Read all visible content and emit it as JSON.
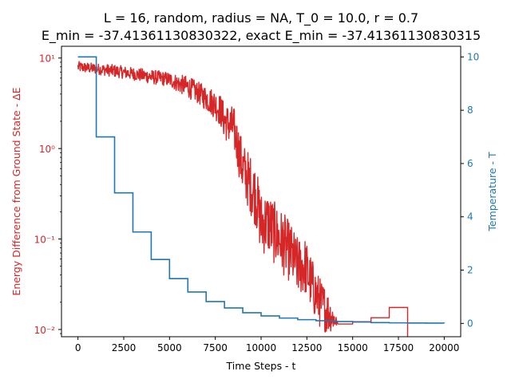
{
  "chart_data": {
    "type": "line",
    "title_line1": "L = 16, random, radius = NA, T_0 = 10.0, r = 0.7",
    "title_line2": "E_min = -37.41361130830322, exact E_min = -37.41361130830315",
    "xlabel": "Time Steps - t",
    "ylabel_left": "Energy Difference from Ground State - ΔE",
    "ylabel_right": "Temperature - T",
    "xlim": [
      -900,
      20900
    ],
    "ylim_left_log10": [
      -2.08,
      1.13
    ],
    "ylim_right": [
      -0.5,
      10.4
    ],
    "x_ticks": [
      0,
      2500,
      5000,
      7500,
      10000,
      12500,
      15000,
      17500,
      20000
    ],
    "x_tick_labels": [
      "0",
      "2500",
      "5000",
      "7500",
      "10000",
      "12500",
      "15000",
      "17500",
      "20000"
    ],
    "y_left_ticks": [
      0.01,
      0.1,
      1,
      10
    ],
    "y_left_tick_labels": [
      "10⁻²",
      "10⁻¹",
      "10⁰",
      "10¹"
    ],
    "y_right_ticks": [
      0,
      2,
      4,
      6,
      8,
      10
    ],
    "y_right_tick_labels": [
      "0",
      "2",
      "4",
      "6",
      "8",
      "10"
    ],
    "colors": {
      "energy": "#d62728",
      "temperature": "#1f77b4"
    },
    "series": [
      {
        "key": "energy",
        "axis": "left-log",
        "x": [
          0,
          1000,
          2000,
          3000,
          4000,
          5000,
          5500,
          6000,
          6500,
          7000,
          7400,
          7800,
          8000,
          8500,
          9000,
          9300,
          9700,
          10000,
          10400,
          10800,
          11200,
          11600,
          12000,
          12400,
          12800,
          13200,
          13600,
          14000,
          14200,
          15000,
          15000,
          16000,
          16000,
          17000,
          17000,
          18000,
          18000
        ],
        "y": [
          8.0,
          7.6,
          7.2,
          6.7,
          6.2,
          5.8,
          5.2,
          4.8,
          4.2,
          3.6,
          3.2,
          2.6,
          2.0,
          1.7,
          0.6,
          0.45,
          0.3,
          0.15,
          0.15,
          0.11,
          0.09,
          0.07,
          0.05,
          0.05,
          0.03,
          0.02,
          0.016,
          0.013,
          0.0115,
          0.0115,
          0.0122,
          0.0122,
          0.0135,
          0.0135,
          0.0175,
          0.0175,
          0.0075
        ],
        "noise": [
          0.06,
          0.06,
          0.07,
          0.07,
          0.08,
          0.08,
          0.1,
          0.12,
          0.12,
          0.14,
          0.16,
          0.18,
          0.2,
          0.24,
          0.3,
          0.32,
          0.34,
          0.35,
          0.35,
          0.35,
          0.35,
          0.33,
          0.32,
          0.32,
          0.3,
          0.28,
          0.25,
          0.12,
          0.0,
          0.0,
          0.0,
          0.0,
          0.0,
          0.0,
          0.0,
          0.0,
          0.0
        ]
      },
      {
        "key": "temperature",
        "axis": "right-linear",
        "x": [
          0,
          1000,
          2000,
          3000,
          4000,
          5000,
          6000,
          7000,
          8000,
          9000,
          10000,
          11000,
          12000,
          13000,
          14000,
          15000,
          16000,
          17000,
          18000,
          19000,
          20000
        ],
        "y": [
          10.0,
          7.0,
          4.9,
          3.43,
          2.4,
          1.68,
          1.18,
          0.82,
          0.58,
          0.4,
          0.28,
          0.2,
          0.14,
          0.1,
          0.07,
          0.05,
          0.03,
          0.02,
          0.016,
          0.011,
          0.008
        ]
      }
    ],
    "grid": false
  }
}
